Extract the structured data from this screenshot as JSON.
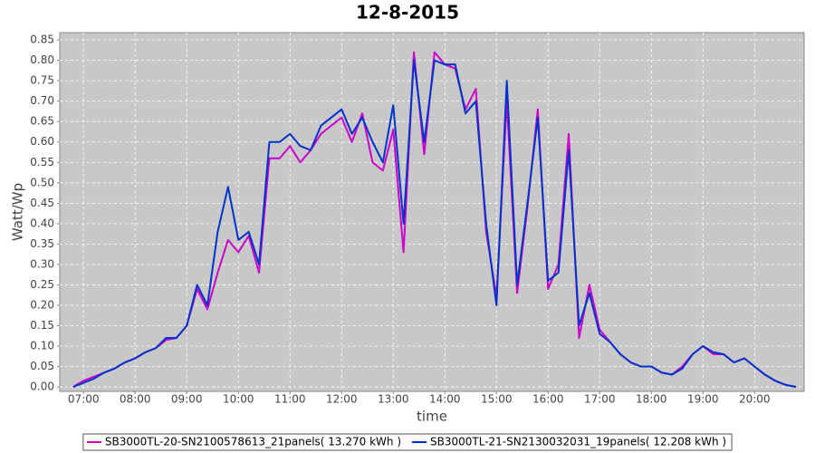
{
  "chart_data": {
    "type": "line",
    "title": "12-8-2015",
    "x_label": "time",
    "y_label": "Watt/Wp",
    "x": [
      6.8,
      7.0,
      7.2,
      7.4,
      7.6,
      7.8,
      8.0,
      8.2,
      8.4,
      8.6,
      8.8,
      9.0,
      9.2,
      9.4,
      9.6,
      9.8,
      10.0,
      10.2,
      10.4,
      10.6,
      10.8,
      11.0,
      11.2,
      11.4,
      11.6,
      11.8,
      12.0,
      12.2,
      12.4,
      12.6,
      12.8,
      13.0,
      13.2,
      13.4,
      13.6,
      13.8,
      14.0,
      14.2,
      14.4,
      14.6,
      14.8,
      15.0,
      15.2,
      15.4,
      15.6,
      15.8,
      16.0,
      16.2,
      16.4,
      16.6,
      16.8,
      17.0,
      17.2,
      17.4,
      17.6,
      17.8,
      18.0,
      18.2,
      18.4,
      18.6,
      18.8,
      19.0,
      19.2,
      19.4,
      19.6,
      19.8,
      20.0,
      20.2,
      20.4,
      20.6,
      20.8
    ],
    "series": [
      {
        "name": "SB3000TL-20-SN2100578613_21panels( 13.270 kWh )",
        "color": "#cc00cc",
        "values": [
          0,
          0.015,
          0.025,
          0.035,
          0.045,
          0.06,
          0.07,
          0.085,
          0.095,
          0.115,
          0.12,
          0.15,
          0.24,
          0.19,
          0.28,
          0.36,
          0.33,
          0.37,
          0.28,
          0.56,
          0.56,
          0.59,
          0.55,
          0.58,
          0.62,
          0.64,
          0.66,
          0.6,
          0.67,
          0.55,
          0.53,
          0.63,
          0.33,
          0.82,
          0.57,
          0.82,
          0.79,
          0.78,
          0.68,
          0.73,
          0.38,
          0.22,
          0.7,
          0.23,
          0.44,
          0.68,
          0.24,
          0.3,
          0.62,
          0.12,
          0.25,
          0.14,
          0.11,
          0.08,
          0.06,
          0.05,
          0.05,
          0.035,
          0.03,
          0.05,
          0.08,
          0.1,
          0.08,
          0.08,
          0.06,
          0.07,
          0.05,
          0.03,
          0.015,
          0.005,
          0
        ]
      },
      {
        "name": "SB3000TL-21-SN2130032031_19panels( 12.208 kWh )",
        "color": "#0033cc",
        "values": [
          0,
          0.01,
          0.02,
          0.035,
          0.045,
          0.06,
          0.07,
          0.085,
          0.095,
          0.12,
          0.12,
          0.15,
          0.25,
          0.2,
          0.38,
          0.49,
          0.36,
          0.38,
          0.3,
          0.6,
          0.6,
          0.62,
          0.59,
          0.58,
          0.64,
          0.66,
          0.68,
          0.62,
          0.66,
          0.6,
          0.55,
          0.69,
          0.4,
          0.8,
          0.6,
          0.8,
          0.79,
          0.79,
          0.67,
          0.7,
          0.4,
          0.2,
          0.75,
          0.25,
          0.45,
          0.66,
          0.26,
          0.28,
          0.58,
          0.15,
          0.23,
          0.13,
          0.11,
          0.08,
          0.06,
          0.05,
          0.05,
          0.035,
          0.03,
          0.045,
          0.08,
          0.1,
          0.085,
          0.08,
          0.06,
          0.07,
          0.05,
          0.03,
          0.015,
          0.005,
          0
        ]
      }
    ],
    "xlim": [
      6.54,
      20.96
    ],
    "ylim": [
      -0.011,
      0.868
    ],
    "xticks": [
      {
        "value": 7,
        "label": "07:00"
      },
      {
        "value": 8,
        "label": "08:00"
      },
      {
        "value": 9,
        "label": "09:00"
      },
      {
        "value": 10,
        "label": "10:00"
      },
      {
        "value": 11,
        "label": "11:00"
      },
      {
        "value": 12,
        "label": "12:00"
      },
      {
        "value": 13,
        "label": "13:00"
      },
      {
        "value": 14,
        "label": "14:00"
      },
      {
        "value": 15,
        "label": "15:00"
      },
      {
        "value": 16,
        "label": "16:00"
      },
      {
        "value": 17,
        "label": "17:00"
      },
      {
        "value": 18,
        "label": "18:00"
      },
      {
        "value": 19,
        "label": "19:00"
      },
      {
        "value": 20,
        "label": "20:00"
      }
    ],
    "yticks": [
      {
        "value": 0,
        "label": "0.00"
      },
      {
        "value": 0.05,
        "label": "0.05"
      },
      {
        "value": 0.1,
        "label": "0.10"
      },
      {
        "value": 0.15,
        "label": "0.15"
      },
      {
        "value": 0.2,
        "label": "0.20"
      },
      {
        "value": 0.25,
        "label": "0.25"
      },
      {
        "value": 0.3,
        "label": "0.30"
      },
      {
        "value": 0.35,
        "label": "0.35"
      },
      {
        "value": 0.4,
        "label": "0.40"
      },
      {
        "value": 0.45,
        "label": "0.45"
      },
      {
        "value": 0.5,
        "label": "0.50"
      },
      {
        "value": 0.55,
        "label": "0.55"
      },
      {
        "value": 0.6,
        "label": "0.60"
      },
      {
        "value": 0.65,
        "label": "0.65"
      },
      {
        "value": 0.7,
        "label": "0.70"
      },
      {
        "value": 0.75,
        "label": "0.75"
      },
      {
        "value": 0.8,
        "label": "0.80"
      },
      {
        "value": 0.85,
        "label": "0.85"
      }
    ],
    "grid": true
  }
}
